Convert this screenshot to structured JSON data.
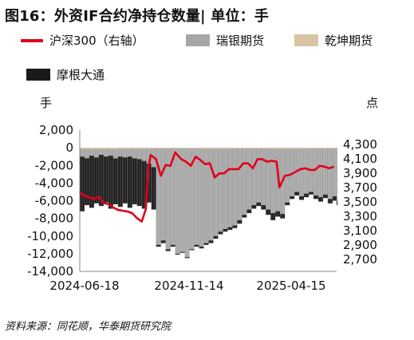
{
  "title": "图16：外资IF合约净持仓数量| 单位：手",
  "source": "资料来源：同花顺，华泰期货研究院",
  "chart_data": {
    "type": "bar",
    "left_unit": "手",
    "right_unit": "点",
    "legend_placement": "top",
    "grid": false,
    "left_ylim": [
      -14000,
      2000
    ],
    "right_ylim": [
      2600,
      4300
    ],
    "left_ticks": [
      "2,000",
      "0",
      "-2,000",
      "-4,000",
      "-6,000",
      "-8,000",
      "-10,000",
      "-12,000",
      "-14,000"
    ],
    "right_ticks": [
      "4,300",
      "4,100",
      "3,900",
      "3,700",
      "3,500",
      "3,300",
      "3,100",
      "2,900",
      "2,700"
    ],
    "x_ticks": [
      "2024-06-18",
      "2024-11-14",
      "2025-04-15"
    ],
    "x_range": [
      "2024-06-18",
      "2025-06-30"
    ],
    "series": [
      {
        "name": "沪深300（右轴）",
        "kind": "line",
        "axis": "right",
        "color": "#e0001b",
        "x": [
          "2024-06-18",
          "2024-06-25",
          "2024-07-02",
          "2024-07-09",
          "2024-07-16",
          "2024-07-23",
          "2024-07-30",
          "2024-08-06",
          "2024-08-13",
          "2024-08-20",
          "2024-08-27",
          "2024-09-03",
          "2024-09-10",
          "2024-09-17",
          "2024-09-23",
          "2024-09-25",
          "2024-09-27",
          "2024-09-30",
          "2024-10-08",
          "2024-10-15",
          "2024-10-22",
          "2024-10-29",
          "2024-11-05",
          "2024-11-14",
          "2024-11-21",
          "2024-11-28",
          "2024-12-05",
          "2024-12-12",
          "2024-12-19",
          "2024-12-26",
          "2025-01-02",
          "2025-01-09",
          "2025-01-16",
          "2025-01-23",
          "2025-02-06",
          "2025-02-13",
          "2025-02-20",
          "2025-02-27",
          "2025-03-06",
          "2025-03-13",
          "2025-03-20",
          "2025-03-27",
          "2025-04-03",
          "2025-04-07",
          "2025-04-15",
          "2025-04-22",
          "2025-04-29",
          "2025-05-08",
          "2025-05-15",
          "2025-05-22",
          "2025-05-29",
          "2025-06-05",
          "2025-06-12",
          "2025-06-19",
          "2025-06-26"
        ],
        "values": [
          3550,
          3510,
          3490,
          3470,
          3500,
          3420,
          3410,
          3370,
          3340,
          3330,
          3320,
          3300,
          3240,
          3200,
          3350,
          3650,
          3850,
          4000,
          3950,
          3750,
          3880,
          3870,
          4030,
          3950,
          3920,
          3870,
          3980,
          3940,
          3890,
          3900,
          3730,
          3780,
          3780,
          3830,
          3830,
          3900,
          3900,
          3840,
          3950,
          3950,
          3920,
          3930,
          3920,
          3610,
          3750,
          3760,
          3790,
          3830,
          3840,
          3820,
          3820,
          3870,
          3860,
          3840,
          3860
        ]
      },
      {
        "name": "瑞银期货",
        "kind": "bar",
        "axis": "left",
        "color": "#a6a6a6",
        "x": [
          "2024-06-18",
          "2024-06-25",
          "2024-07-02",
          "2024-07-09",
          "2024-07-16",
          "2024-07-23",
          "2024-07-30",
          "2024-08-06",
          "2024-08-13",
          "2024-08-20",
          "2024-08-27",
          "2024-09-03",
          "2024-09-10",
          "2024-09-17",
          "2024-09-24",
          "2024-10-01",
          "2024-10-08",
          "2024-10-15",
          "2024-10-22",
          "2024-10-29",
          "2024-11-05",
          "2024-11-12",
          "2024-11-19",
          "2024-11-26",
          "2024-12-03",
          "2024-12-10",
          "2024-12-17",
          "2024-12-24",
          "2024-12-31",
          "2025-01-07",
          "2025-01-14",
          "2025-01-21",
          "2025-01-28",
          "2025-02-04",
          "2025-02-11",
          "2025-02-18",
          "2025-02-25",
          "2025-03-04",
          "2025-03-11",
          "2025-03-18",
          "2025-03-25",
          "2025-04-01",
          "2025-04-08",
          "2025-04-15",
          "2025-04-22",
          "2025-04-29",
          "2025-05-06",
          "2025-05-13",
          "2025-05-20",
          "2025-05-27",
          "2025-06-03",
          "2025-06-10",
          "2025-06-17",
          "2025-06-24",
          "2025-06-30"
        ],
        "values": [
          -1000,
          -1200,
          -900,
          -1100,
          -800,
          -1000,
          -900,
          -1200,
          -1000,
          -1100,
          -1000,
          -1200,
          -1300,
          -1500,
          -1800,
          -2200,
          -11000,
          -10500,
          -11500,
          -11000,
          -12000,
          -11800,
          -12400,
          -11500,
          -11000,
          -11200,
          -10800,
          -10500,
          -10000,
          -9500,
          -9200,
          -9000,
          -8800,
          -8200,
          -7600,
          -7000,
          -6500,
          -6200,
          -6500,
          -7000,
          -7400,
          -7200,
          -7500,
          -6200,
          -5500,
          -5000,
          -5500,
          -5200,
          -5000,
          -5400,
          -5600,
          -5300,
          -5800,
          -5500,
          -6000
        ]
      },
      {
        "name": "乾坤期货",
        "kind": "bar",
        "axis": "left",
        "color": "#d8c5a3",
        "x": [
          "2024-06-18",
          "2024-08-13",
          "2024-10-08",
          "2024-12-03",
          "2025-01-28",
          "2025-03-25",
          "2025-05-20",
          "2025-06-30"
        ],
        "values": [
          -150,
          -120,
          -100,
          -120,
          -100,
          -120,
          -100,
          -120
        ]
      },
      {
        "name": "摩根大通",
        "kind": "bar",
        "axis": "left",
        "color": "#1a1a1a",
        "x": [
          "2024-06-18",
          "2024-06-25",
          "2024-07-02",
          "2024-07-09",
          "2024-07-16",
          "2024-07-23",
          "2024-07-30",
          "2024-08-06",
          "2024-08-13",
          "2024-08-20",
          "2024-08-27",
          "2024-09-03",
          "2024-09-10",
          "2024-09-17",
          "2024-09-24",
          "2024-10-01",
          "2024-10-08",
          "2024-10-15",
          "2024-10-22",
          "2024-10-29",
          "2024-11-05",
          "2024-11-12",
          "2024-11-19",
          "2024-11-26",
          "2024-12-03",
          "2024-12-10",
          "2024-12-17",
          "2024-12-24",
          "2024-12-31",
          "2025-01-07",
          "2025-01-14",
          "2025-01-21",
          "2025-01-28",
          "2025-02-04",
          "2025-02-11",
          "2025-02-18",
          "2025-02-25",
          "2025-03-04",
          "2025-03-11",
          "2025-03-18",
          "2025-03-25",
          "2025-04-01",
          "2025-04-08",
          "2025-04-15",
          "2025-04-22",
          "2025-04-29",
          "2025-05-06",
          "2025-05-13",
          "2025-05-20",
          "2025-05-27",
          "2025-06-03",
          "2025-06-10",
          "2025-06-17",
          "2025-06-24",
          "2025-06-30"
        ],
        "values": [
          -7200,
          -6500,
          -6800,
          -6300,
          -6600,
          -6200,
          -6900,
          -6400,
          -6700,
          -6300,
          -6800,
          -6400,
          -6600,
          -6900,
          -6200,
          -7000,
          -11200,
          -10800,
          -11700,
          -11200,
          -12100,
          -11900,
          -12500,
          -11600,
          -11200,
          -11400,
          -11000,
          -10800,
          -10300,
          -9800,
          -9500,
          -9300,
          -9100,
          -8600,
          -7900,
          -7400,
          -6900,
          -6600,
          -7000,
          -7600,
          -8200,
          -7800,
          -8000,
          -6500,
          -5800,
          -5400,
          -5900,
          -5600,
          -5300,
          -5800,
          -6100,
          -5700,
          -6300,
          -6000,
          -6500
        ]
      }
    ]
  }
}
